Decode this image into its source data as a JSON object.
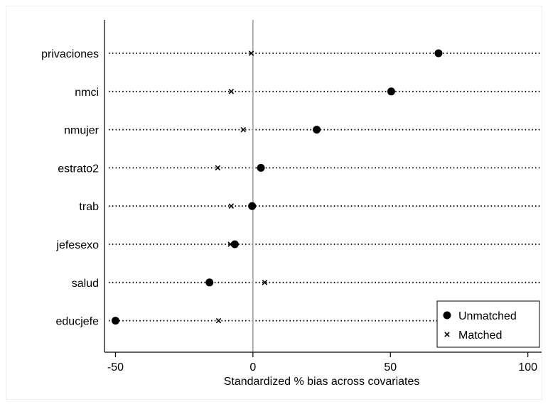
{
  "chart_data": {
    "type": "scatter",
    "title": "",
    "xlabel": "Standardized % bias across covariates",
    "ylabel": "",
    "xlim": [
      -54,
      105
    ],
    "xticks": [
      -50,
      0,
      50,
      100
    ],
    "grid": false,
    "legend_position": "bottom-right",
    "categories": [
      "privaciones",
      "nmci",
      "nmujer",
      "estrato2",
      "trab",
      "jefesexo",
      "salud",
      "educjefe"
    ],
    "series": [
      {
        "name": "Unmatched",
        "marker": "circle",
        "values": [
          67.5,
          50.3,
          23.2,
          2.9,
          -0.3,
          -6.6,
          -15.8,
          -50.0
        ]
      },
      {
        "name": "Matched",
        "marker": "x",
        "values": [
          -0.6,
          -7.9,
          -3.5,
          -12.8,
          -7.9,
          -8.2,
          4.3,
          -12.5
        ]
      }
    ],
    "colors": {
      "marker": "#000000",
      "zero_line": "#a0a0a0",
      "dotted_lines": "#000000",
      "axis": "#000000",
      "background": "#ffffff"
    }
  }
}
